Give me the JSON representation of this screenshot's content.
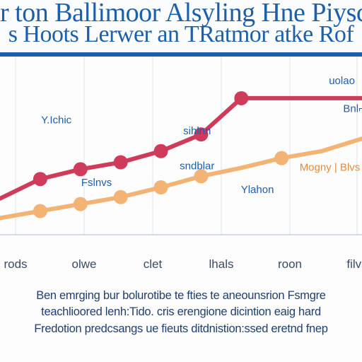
{
  "header": {
    "title_line1": "r ton Ballimoor Alsyling Hne Piysco",
    "title_line2": "s Hoots Lerwer an TRatmor atke Rof"
  },
  "footer": {
    "caption_line1": "Ben emrging bur bolurotibe te fties te aneounsrion Fsmgre",
    "caption_line2": "teachlioored lenh:Tido. cris erengione dicintion eaig hard",
    "caption_line3": "Fredotion predcsangs ue fieuts ditdnistion:ssed eretnd fnep"
  },
  "chart_data": {
    "type": "line",
    "categories": [
      "rods",
      "olwe",
      "clet",
      "lhals",
      "roon",
      "filvs"
    ],
    "xlim": [
      0,
      9
    ],
    "ylim": [
      0,
      100
    ],
    "x": [
      0,
      1,
      2,
      3,
      4,
      5,
      6,
      7,
      8,
      9
    ],
    "series": [
      {
        "name": "",
        "color": "#cf3b5a",
        "values": [
          26,
          40,
          47,
          52,
          60,
          72,
          98,
          98,
          98,
          98
        ],
        "markers": [
          false,
          true,
          true,
          true,
          true,
          true,
          true,
          false,
          false,
          false
        ]
      },
      {
        "name": "",
        "color": "#f2b374",
        "values": [
          12,
          17,
          22,
          27,
          34,
          42,
          48,
          55,
          60,
          69
        ],
        "markers": [
          false,
          true,
          true,
          true,
          true,
          true,
          false,
          true,
          false,
          false
        ]
      }
    ],
    "annotations": [
      {
        "text": "Y.Ichic",
        "x": 1.4,
        "y": 80,
        "color": "#1f5ea8"
      },
      {
        "text": "sihlnn",
        "x": 4.9,
        "y": 72,
        "color": "#1f5ea8"
      },
      {
        "text": "sndblar",
        "x": 4.9,
        "y": 47,
        "color": "#1f5ea8"
      },
      {
        "text": "Fslnvs",
        "x": 2.4,
        "y": 35,
        "color": "#1f5ea8"
      },
      {
        "text": "Ylahon",
        "x": 6.4,
        "y": 30,
        "color": "#1f5ea8"
      },
      {
        "text": "uolao",
        "x": 8.5,
        "y": 108,
        "color": "#1f5ea8"
      },
      {
        "text": "Bnl⌐",
        "x": 8.8,
        "y": 88,
        "color": "#1f5ea8"
      },
      {
        "text": "Mogny | Blvs",
        "x": 8.2,
        "y": 46,
        "color": "#e08b3f"
      }
    ],
    "grid": true
  }
}
